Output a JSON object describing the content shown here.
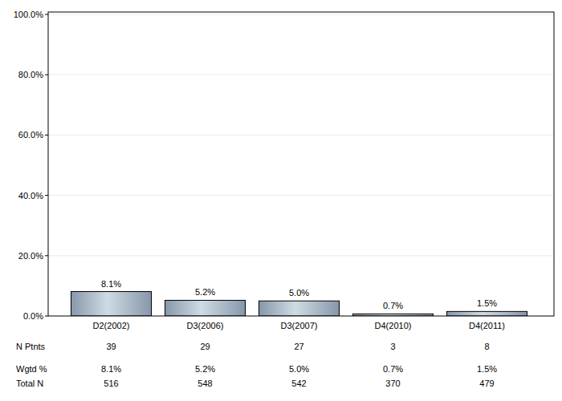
{
  "chart_data": {
    "type": "bar",
    "categories": [
      "D2(2002)",
      "D3(2006)",
      "D3(2007)",
      "D4(2010)",
      "D4(2011)"
    ],
    "values": [
      8.1,
      5.2,
      5.0,
      0.7,
      1.5
    ],
    "value_labels": [
      "8.1%",
      "5.2%",
      "5.0%",
      "0.7%",
      "1.5%"
    ],
    "data_labels": true,
    "ylim": [
      0,
      100
    ],
    "yticks": [
      {
        "value": 0,
        "label": "0.0%"
      },
      {
        "value": 20,
        "label": "20.0%"
      },
      {
        "value": 40,
        "label": "40.0%"
      },
      {
        "value": 60,
        "label": "60.0%"
      },
      {
        "value": 80,
        "label": "80.0%"
      },
      {
        "value": 100,
        "label": "100.0%"
      }
    ],
    "grid": true
  },
  "table": {
    "rows": [
      {
        "label": "N Ptnts",
        "values": [
          39,
          29,
          27,
          3,
          8
        ]
      },
      {
        "label": "Wgtd %",
        "values": [
          "8.1%",
          "5.2%",
          "5.0%",
          "0.7%",
          "1.5%"
        ]
      },
      {
        "label": "Total N",
        "values": [
          516,
          548,
          542,
          370,
          479
        ]
      }
    ]
  }
}
